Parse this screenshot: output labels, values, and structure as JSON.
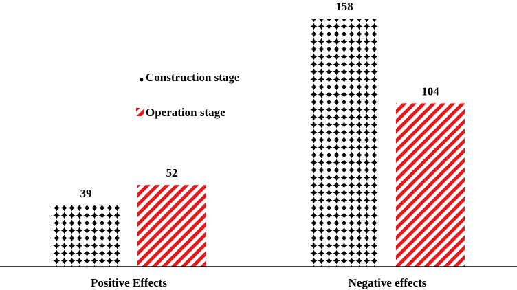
{
  "chart_data": {
    "type": "bar",
    "title": "",
    "xlabel": "",
    "ylabel": "",
    "categories": [
      "Positive Effects",
      "Negative effects"
    ],
    "series": [
      {
        "name": "Construction stage",
        "values": [
          39,
          158
        ],
        "color": "#000000",
        "pattern": "dotted-cross"
      },
      {
        "name": "Operation stage",
        "values": [
          52,
          104
        ],
        "color": "#e31a1c",
        "pattern": "diagonal-stripes"
      }
    ],
    "ylim": [
      0,
      158
    ],
    "grid": false,
    "legend": "upper-left-center"
  }
}
